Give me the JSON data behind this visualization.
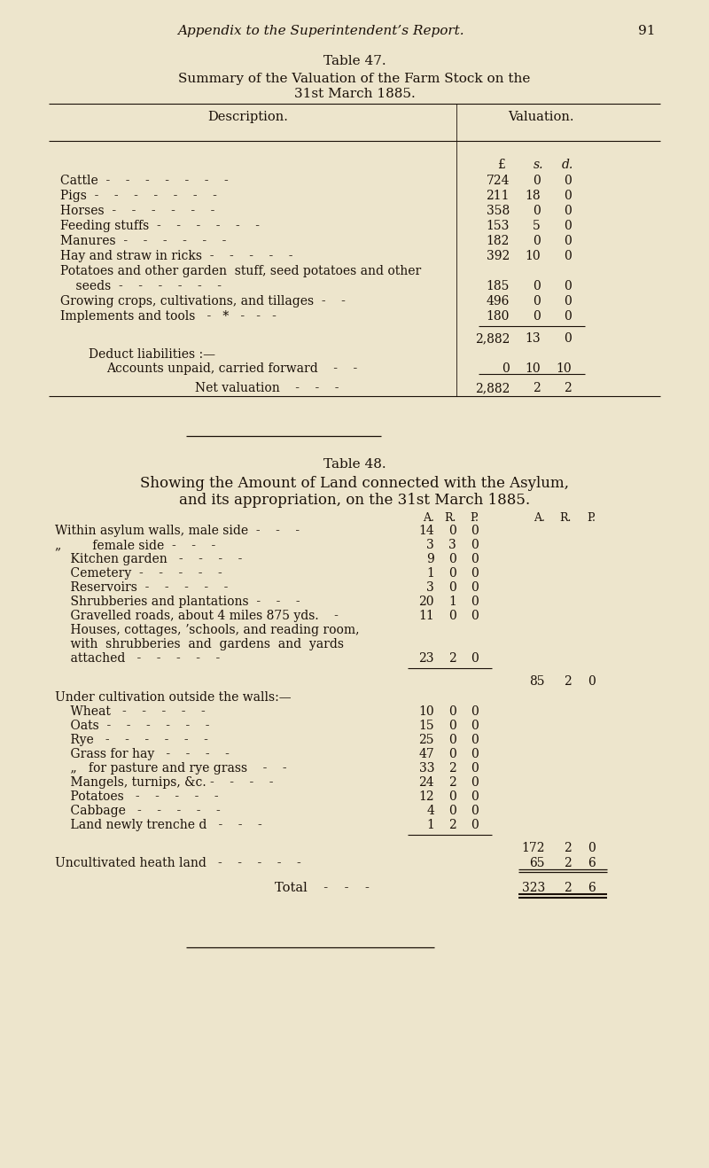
{
  "bg_color": "#ede5cc",
  "text_color": "#1a1008",
  "page_header": "Appendix to the Superintendent’s Report.",
  "page_number": "91",
  "table47_title1": "Table 47.",
  "table47_title2": "Summary of the Valuation of the Farm Stock on the",
  "table47_title3": "31st March 1885.",
  "col_desc": "Description.",
  "col_val": "Valuation.",
  "pound_sign": "£",
  "shilling": "s.",
  "pence": "d.",
  "t47_rows": [
    [
      "Cattle  -    -    -    -    -    -    -",
      "724",
      "0",
      "0"
    ],
    [
      "Pigs  -    -    -    -    -    -    -",
      "211",
      "18",
      "0"
    ],
    [
      "Horses  -    -    -    -    -    -",
      "358",
      "0",
      "0"
    ],
    [
      "Feeding stuffs  -    -    -    -    -    -",
      "153",
      "5",
      "0"
    ],
    [
      "Manures  -    -    -    -    -    -",
      "182",
      "0",
      "0"
    ],
    [
      "Hay and straw in ricks  -    -    -    -    -",
      "392",
      "10",
      "0"
    ],
    [
      "Potatoes and other garden  stuff, seed potatoes and other",
      "",
      "",
      ""
    ],
    [
      "    seeds  -    -    -    -    -    -",
      "185",
      "0",
      "0"
    ],
    [
      "Growing crops, cultivations, and tillages  -    -",
      "496",
      "0",
      "0"
    ],
    [
      "Implements and tools   -   *   -   -   -",
      "180",
      "0",
      "0"
    ]
  ],
  "t47_subtotal": [
    "2,882",
    "13",
    "0"
  ],
  "t47_deduct_label": "Deduct liabilities :—",
  "t47_accounts_label": "Accounts unpaid, carried forward    -    -",
  "t47_accounts_val": [
    "0",
    "10",
    "10"
  ],
  "t47_net_label": "Net valuation    -    -    -",
  "t47_net_val": [
    "2,882",
    "2",
    "2"
  ],
  "table48_title1": "Table 48.",
  "table48_title2": "Showing the Amount of Land connected with the Asylum,",
  "table48_title3": "and its appropriation, on the 31st March 1885.",
  "t48_col_hdr_inner": [
    "A.",
    "R.",
    "P."
  ],
  "t48_col_hdr_outer": [
    "A.",
    "R.",
    "P."
  ],
  "t48_rows": [
    [
      "Within asylum walls, male side  -    -    -",
      "14",
      "0",
      "0"
    ],
    [
      "„        female side  -    -    -",
      "3",
      "3",
      "0"
    ],
    [
      "    Kitchen garden   -    -    -    -",
      "9",
      "0",
      "0"
    ],
    [
      "    Cemetery  -    -    -    -    -",
      "1",
      "0",
      "0"
    ],
    [
      "    Reservoirs  -    -    -    -    -",
      "3",
      "0",
      "0"
    ],
    [
      "    Shrubberies and plantations  -    -    -",
      "20",
      "1",
      "0"
    ],
    [
      "    Gravelled roads, about 4 miles 875 yds.    -",
      "11",
      "0",
      "0"
    ],
    [
      "    Houses, cottages, ʼschools, and reading room,",
      "",
      "",
      ""
    ],
    [
      "    with  shrubberies  and  gardens  and  yards",
      "",
      "",
      ""
    ],
    [
      "    attached   -    -    -    -    -",
      "23",
      "2",
      "0"
    ]
  ],
  "t48_subtotal1": [
    "85",
    "2",
    "0"
  ],
  "t48_cultivation_header": "Under cultivation outside the walls:—",
  "t48_cult_rows": [
    [
      "    Wheat   -    -    -    -    -",
      "10",
      "0",
      "0"
    ],
    [
      "    Oats  -    -    -    -    -    -",
      "15",
      "0",
      "0"
    ],
    [
      "    Rye   -    -    -    -    -    -",
      "25",
      "0",
      "0"
    ],
    [
      "    Grass for hay   -    -    -    -",
      "47",
      "0",
      "0"
    ],
    [
      "    „   for pasture and rye grass    -    -",
      "33",
      "2",
      "0"
    ],
    [
      "    Mangels, turnips, &c. -    -    -    -",
      "24",
      "2",
      "0"
    ],
    [
      "    Potatoes   -    -    -    -    -",
      "12",
      "0",
      "0"
    ],
    [
      "    Cabbage   -    -    -    -    -",
      "4",
      "0",
      "0"
    ],
    [
      "    Land newly trenche d   -    -    -",
      "1",
      "2",
      "0"
    ]
  ],
  "t48_subtotal2": [
    "172",
    "2",
    "0"
  ],
  "t48_heath_label": "Uncultivated heath land   -    -    -    -    -",
  "t48_heath_val": [
    "65",
    "2",
    "6"
  ],
  "t48_total_label": "Total    -    -    -",
  "t48_total_val": [
    "323",
    "2",
    "6"
  ]
}
